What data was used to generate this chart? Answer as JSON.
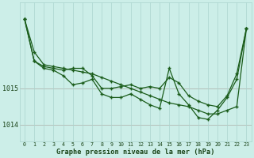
{
  "title": "Graphe pression niveau de la mer (hPa)",
  "bg_color": "#cceee8",
  "line_color": "#1a5c1a",
  "marker_color": "#1a5c1a",
  "grid_color": "#aad4ce",
  "text_color": "#1a4418",
  "hours": [
    0,
    1,
    2,
    3,
    4,
    5,
    6,
    7,
    8,
    9,
    10,
    11,
    12,
    13,
    14,
    15,
    16,
    17,
    18,
    19,
    20,
    21,
    22,
    23
  ],
  "series1": [
    1016.9,
    1016.0,
    1015.65,
    1015.6,
    1015.55,
    1015.5,
    1015.45,
    1015.4,
    1015.3,
    1015.2,
    1015.1,
    1015.0,
    1014.9,
    1014.8,
    1014.7,
    1014.6,
    1014.55,
    1014.5,
    1014.4,
    1014.3,
    1014.3,
    1014.4,
    1014.5,
    1016.65
  ],
  "series2": [
    1016.9,
    1015.75,
    1015.6,
    1015.55,
    1015.5,
    1015.55,
    1015.55,
    1015.35,
    1015.0,
    1015.0,
    1015.05,
    1015.1,
    1015.0,
    1015.05,
    1015.0,
    1015.3,
    1015.15,
    1014.8,
    1014.65,
    1014.55,
    1014.5,
    1014.8,
    1015.4,
    1016.65
  ],
  "series3": [
    1016.9,
    1015.75,
    1015.55,
    1015.5,
    1015.35,
    1015.1,
    1015.15,
    1015.25,
    1014.85,
    1014.75,
    1014.75,
    1014.85,
    1014.7,
    1014.55,
    1014.45,
    1015.55,
    1014.85,
    1014.55,
    1014.2,
    1014.15,
    1014.4,
    1014.75,
    1015.25,
    1016.65
  ],
  "ylim_min": 1013.55,
  "ylim_max": 1017.35,
  "yticks": [
    1014,
    1015
  ],
  "xlim_min": -0.5,
  "xlim_max": 23.5
}
